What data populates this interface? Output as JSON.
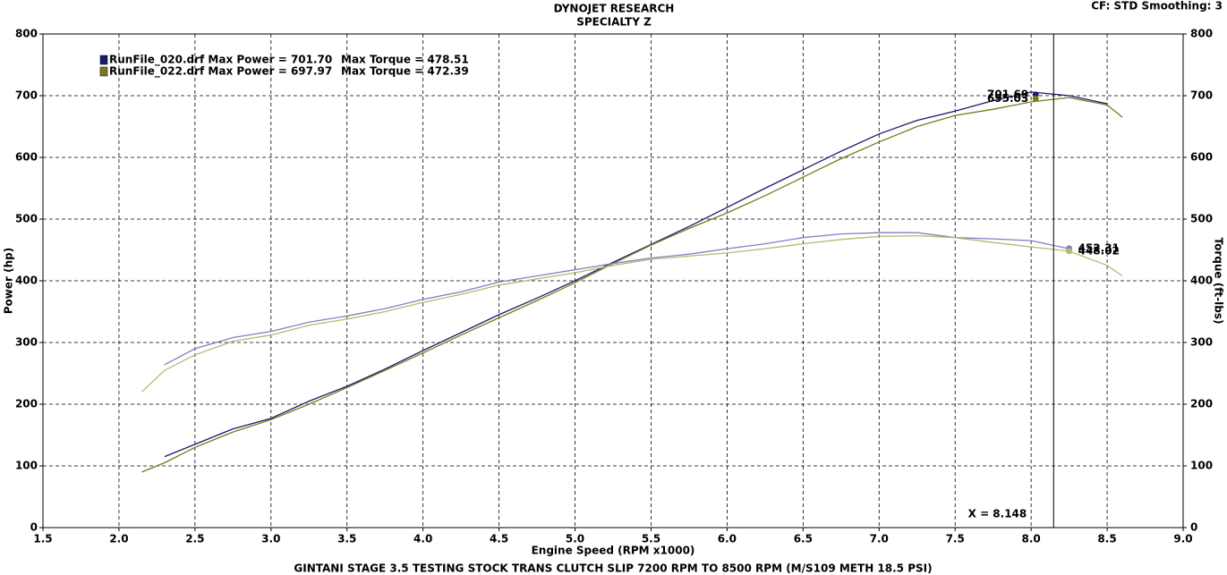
{
  "chart_data": {
    "type": "line",
    "title": "DYNOJET RESEARCH",
    "subtitle": "SPECIALTY Z",
    "corner_note": "CF: STD  Smoothing: 3",
    "x_label": "Engine Speed (RPM x1000)",
    "y_label": "Power (hp)",
    "y2_label": "Torque (ft-lbs)",
    "footer": "GINTANI STAGE 3.5 TESTING STOCK TRANS CLUTCH SLIP 7200 RPM TO 8500 RPM (M/S109 METH 18.5 PSI)",
    "legend": [
      {
        "text": "RunFile_020.drf Max Power = 701.70",
        "torque_text": "Max Torque = 478.51",
        "color": "#1a1a6e"
      },
      {
        "text": "RunFile_022.drf Max Power = 697.97",
        "torque_text": "Max Torque = 472.39",
        "color": "#7a7a1a"
      }
    ],
    "x": [
      2.15,
      2.3,
      2.5,
      2.75,
      3.0,
      3.25,
      3.5,
      3.75,
      4.0,
      4.25,
      4.5,
      4.75,
      5.0,
      5.25,
      5.5,
      5.75,
      6.0,
      6.25,
      6.5,
      6.75,
      7.0,
      7.25,
      7.5,
      7.75,
      8.0,
      8.25,
      8.5,
      8.6
    ],
    "series": [
      {
        "color": "#1a1a6e",
        "values": [
          null,
          115,
          135,
          160,
          177,
          205,
          229,
          257,
          287,
          316,
          345,
          372,
          400,
          430,
          459,
          488,
          519,
          550,
          580,
          610,
          638,
          660,
          675,
          692,
          706,
          700,
          687,
          null
        ]
      },
      {
        "color": "#7a7a1a",
        "values": [
          90,
          105,
          130,
          155,
          175,
          200,
          227,
          255,
          283,
          312,
          340,
          368,
          397,
          428,
          458,
          485,
          510,
          538,
          568,
          598,
          625,
          650,
          668,
          678,
          690,
          697,
          685,
          665
        ]
      },
      {
        "color": "#8080c0",
        "axis": "y2",
        "values": [
          null,
          264,
          290,
          308,
          318,
          333,
          343,
          355,
          370,
          382,
          398,
          408,
          418,
          428,
          437,
          443,
          452,
          460,
          470,
          476,
          478,
          478,
          470,
          468,
          465,
          452,
          null,
          null
        ]
      },
      {
        "color": "#b8b870",
        "axis": "y2",
        "values": [
          220,
          255,
          280,
          302,
          312,
          328,
          338,
          350,
          365,
          378,
          393,
          403,
          413,
          425,
          435,
          440,
          445,
          452,
          460,
          467,
          472,
          473,
          470,
          462,
          455,
          448,
          425,
          408
        ]
      }
    ],
    "markers": [
      {
        "x": 8.03,
        "value": 701.69,
        "color": "#1a1a6e",
        "side": "left"
      },
      {
        "x": 8.03,
        "value": 695.03,
        "color": "#7a7a1a",
        "side": "left"
      },
      {
        "x": 8.25,
        "value": 452.31,
        "color": "#8080c0",
        "side": "right"
      },
      {
        "x": 8.25,
        "value": 448.02,
        "color": "#b8b870",
        "side": "right"
      }
    ],
    "cursor": {
      "x": 8.148,
      "label": "X = 8.148"
    },
    "xlim": [
      1.5,
      9.0
    ],
    "xticks": [
      {
        "value": 1.5,
        "label": "1.5"
      },
      {
        "value": 2,
        "label": "2.0"
      },
      {
        "value": 2.5,
        "label": "2.5"
      },
      {
        "value": 3,
        "label": "3.0"
      },
      {
        "value": 3.5,
        "label": "3.5"
      },
      {
        "value": 4,
        "label": "4.0"
      },
      {
        "value": 4.5,
        "label": "4.5"
      },
      {
        "value": 5,
        "label": "5.0"
      },
      {
        "value": 5.5,
        "label": "5.5"
      },
      {
        "value": 6,
        "label": "6.0"
      },
      {
        "value": 6.5,
        "label": "6.5"
      },
      {
        "value": 7,
        "label": "7.0"
      },
      {
        "value": 7.5,
        "label": "7.5"
      },
      {
        "value": 8,
        "label": "8.0"
      },
      {
        "value": 8.5,
        "label": "8.5"
      },
      {
        "value": 9,
        "label": "9.0"
      }
    ],
    "ylim": [
      0,
      800
    ],
    "yticks": [
      0,
      100,
      200,
      300,
      400,
      500,
      600,
      700,
      800
    ],
    "y2lim": [
      0,
      800
    ],
    "y2ticks": [
      0,
      100,
      200,
      300,
      400,
      500,
      600,
      700,
      800
    ],
    "grid": true
  }
}
